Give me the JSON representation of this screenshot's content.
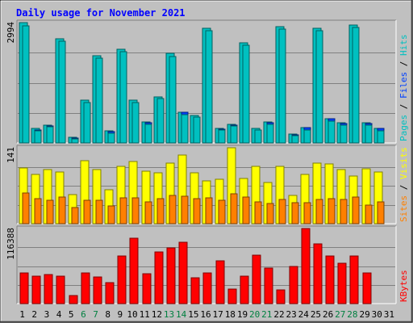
{
  "title": "Daily usage for November 2021",
  "colors": {
    "background": "#c0c0c0",
    "title": "#0000ff",
    "hits": "#00c0c0",
    "files": "#0040ff",
    "pages": "#00c0c0",
    "visits": "#ffff00",
    "sites": "#ff8000",
    "kbytes": "#ff0000",
    "weekend_label": "#008040",
    "weekday_label": "#000000"
  },
  "chart_data": [
    {
      "type": "bar",
      "title": "Daily usage for November 2021",
      "y_max_label": "2994",
      "right_label": [
        "Pages",
        "Files",
        "Hits"
      ],
      "x": [
        1,
        2,
        3,
        4,
        5,
        6,
        7,
        8,
        9,
        10,
        11,
        12,
        13,
        14,
        15,
        16,
        17,
        18,
        19,
        20,
        21,
        22,
        23,
        24,
        25,
        26,
        27,
        28,
        29,
        30,
        31
      ],
      "ylim": [
        0,
        2994
      ],
      "series": [
        {
          "name": "Hits",
          "values": [
            2994,
            360,
            450,
            2600,
            150,
            1060,
            2170,
            300,
            2330,
            1060,
            520,
            1150,
            2230,
            770,
            690,
            2860,
            370,
            470,
            2500,
            370,
            520,
            2900,
            230,
            380,
            2850,
            600,
            500,
            2930,
            500,
            360,
            0
          ]
        },
        {
          "name": "Files",
          "values": [
            300,
            330,
            420,
            310,
            130,
            550,
            270,
            280,
            540,
            550,
            500,
            800,
            510,
            770,
            650,
            470,
            350,
            450,
            600,
            320,
            500,
            520,
            200,
            380,
            650,
            600,
            490,
            580,
            480,
            360,
            0
          ]
        },
        {
          "name": "Pages",
          "values": [
            2920,
            310,
            400,
            2540,
            110,
            1000,
            2110,
            240,
            2270,
            1010,
            460,
            1100,
            2160,
            710,
            640,
            2800,
            320,
            420,
            2440,
            320,
            470,
            2840,
            190,
            330,
            2790,
            550,
            440,
            2870,
            440,
            310,
            0
          ]
        }
      ]
    },
    {
      "type": "bar",
      "y_max_label": "141",
      "right_label": [
        "Sites",
        "Visits"
      ],
      "x": [
        1,
        2,
        3,
        4,
        5,
        6,
        7,
        8,
        9,
        10,
        11,
        12,
        13,
        14,
        15,
        16,
        17,
        18,
        19,
        20,
        21,
        22,
        23,
        24,
        25,
        26,
        27,
        28,
        29,
        30,
        31
      ],
      "ylim": [
        0,
        141
      ],
      "series": [
        {
          "name": "Visits",
          "values": [
            103,
            91,
            100,
            96,
            54,
            117,
            101,
            63,
            107,
            115,
            97,
            94,
            112,
            128,
            95,
            79,
            83,
            141,
            84,
            107,
            77,
            107,
            53,
            92,
            113,
            111,
            100,
            88,
            102,
            96,
            0
          ]
        },
        {
          "name": "Sites",
          "values": [
            57,
            46,
            43,
            50,
            30,
            44,
            43,
            33,
            48,
            48,
            40,
            47,
            53,
            51,
            47,
            48,
            44,
            55,
            49,
            41,
            37,
            45,
            39,
            39,
            45,
            46,
            45,
            50,
            35,
            41,
            0
          ]
        }
      ]
    },
    {
      "type": "bar",
      "y_max_label": "116388",
      "right_label": [
        "KBytes"
      ],
      "x": [
        1,
        2,
        3,
        4,
        5,
        6,
        7,
        8,
        9,
        10,
        11,
        12,
        13,
        14,
        15,
        16,
        17,
        18,
        19,
        20,
        21,
        22,
        23,
        24,
        25,
        26,
        27,
        28,
        29,
        30,
        31
      ],
      "ylim": [
        0,
        116388
      ],
      "series": [
        {
          "name": "KBytes",
          "values": [
            47000,
            43000,
            45000,
            42000,
            13000,
            48000,
            41000,
            33000,
            74000,
            101000,
            46000,
            80000,
            86000,
            95000,
            40000,
            47000,
            66000,
            22000,
            42000,
            75000,
            55000,
            21000,
            57000,
            116388,
            92000,
            74000,
            63000,
            74000,
            48000,
            0,
            0
          ]
        }
      ]
    }
  ],
  "x_labels": [
    "1",
    "2",
    "3",
    "4",
    "5",
    "6",
    "7",
    "8",
    "9",
    "10",
    "11",
    "12",
    "13",
    "14",
    "15",
    "16",
    "17",
    "18",
    "19",
    "20",
    "21",
    "22",
    "23",
    "24",
    "25",
    "26",
    "27",
    "28",
    "29",
    "30",
    "31"
  ],
  "weekend_days": [
    6,
    7,
    13,
    14,
    20,
    21,
    27,
    28
  ]
}
